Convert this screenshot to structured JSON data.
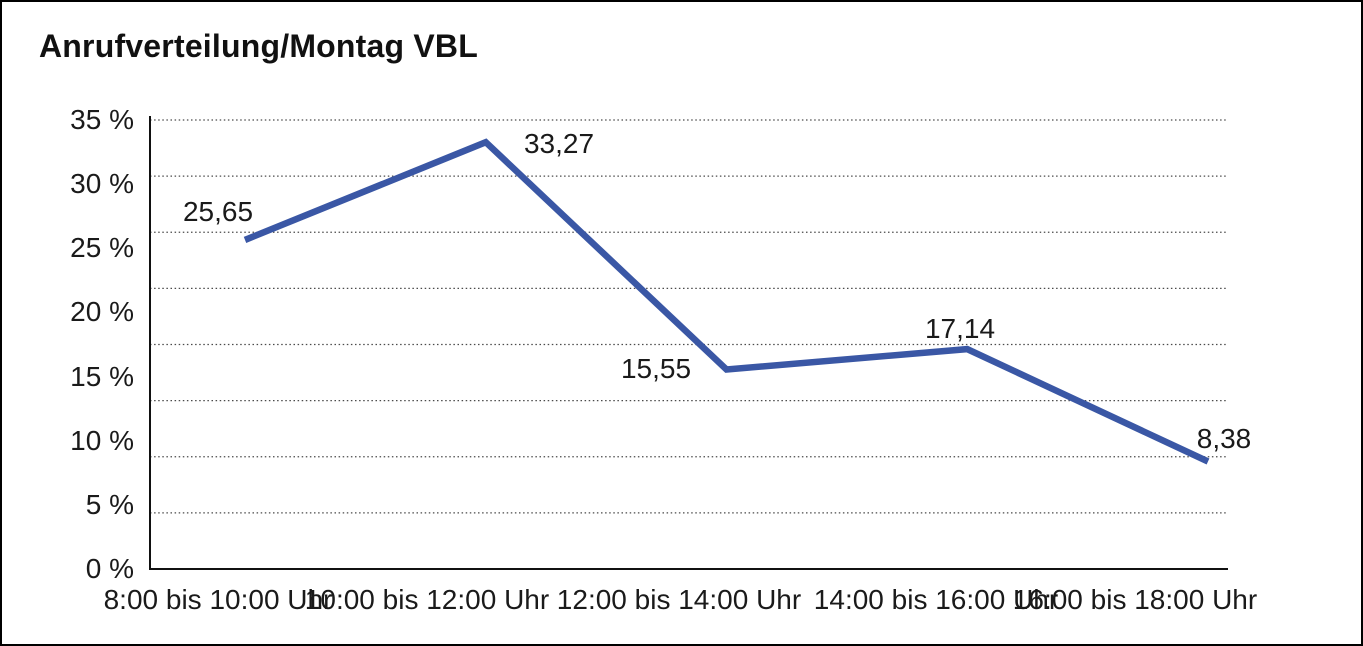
{
  "chart_data": {
    "type": "line",
    "title": "Anrufverteilung/Montag VBL",
    "categories": [
      "8:00 bis 10:00 Uhr",
      "10:00 bis 12:00 Uhr",
      "12:00 bis 14:00 Uhr",
      "14:00 bis 16:00 Uhr",
      "16:00 bis 18:00 Uhr"
    ],
    "values": [
      25.65,
      33.27,
      15.55,
      17.14,
      8.38
    ],
    "value_labels": [
      "25,65",
      "33,27",
      "15,55",
      "17,14",
      "8,38"
    ],
    "y_tick_labels": [
      "35 %",
      "30 %",
      "25 %",
      "20 %",
      "15 %",
      "10 %",
      "5 %",
      "0 %"
    ],
    "y_tick_values": [
      35,
      30,
      25,
      20,
      15,
      10,
      5,
      0
    ],
    "ylim": [
      0,
      35
    ],
    "xlabel": "",
    "ylabel": "",
    "legend": "none",
    "grid": {
      "horizontal": true,
      "style": "dotted",
      "divisions": 8
    },
    "line_color": "#3A57A5",
    "grid_color": "#4a4a4a",
    "axis_color": "#111111",
    "background": "#ffffff",
    "border_color": "#000000"
  }
}
